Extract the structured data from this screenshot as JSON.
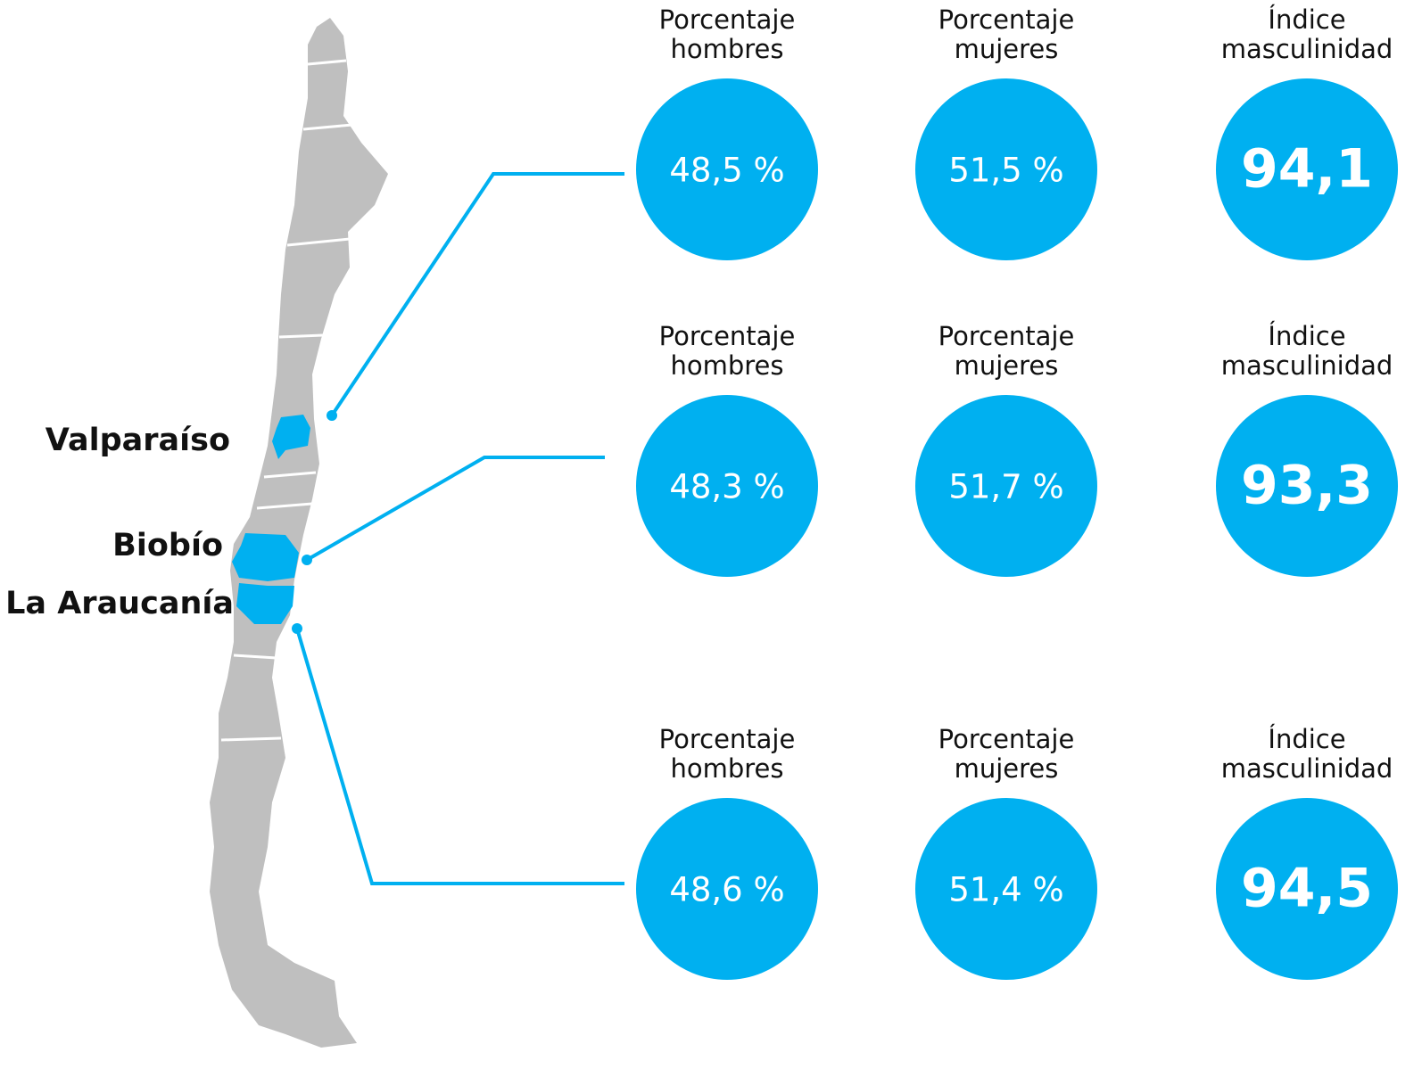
{
  "regions": [
    {
      "name": "Valparaíso",
      "stats": [
        {
          "label": [
            "Porcentaje",
            "hombres"
          ],
          "value": "48,5 %"
        },
        {
          "label": [
            "Porcentaje",
            "mujeres"
          ],
          "value": "51,5 %"
        },
        {
          "label": [
            "Índice",
            "masculinidad"
          ],
          "value": "94,1"
        }
      ]
    },
    {
      "name": "Biobío",
      "stats": [
        {
          "label": [
            "Porcentaje",
            "hombres"
          ],
          "value": "48,3 %"
        },
        {
          "label": [
            "Porcentaje",
            "mujeres"
          ],
          "value": "51,7 %"
        },
        {
          "label": [
            "Índice",
            "masculinidad"
          ],
          "value": "93,3"
        }
      ]
    },
    {
      "name": "La Araucanía",
      "stats": [
        {
          "label": [
            "Porcentaje",
            "hombres"
          ],
          "value": "48,6 %"
        },
        {
          "label": [
            "Porcentaje",
            "mujeres"
          ],
          "value": "51,4 %"
        },
        {
          "label": [
            "Índice",
            "masculinidad"
          ],
          "value": "94,5"
        }
      ]
    }
  ]
}
